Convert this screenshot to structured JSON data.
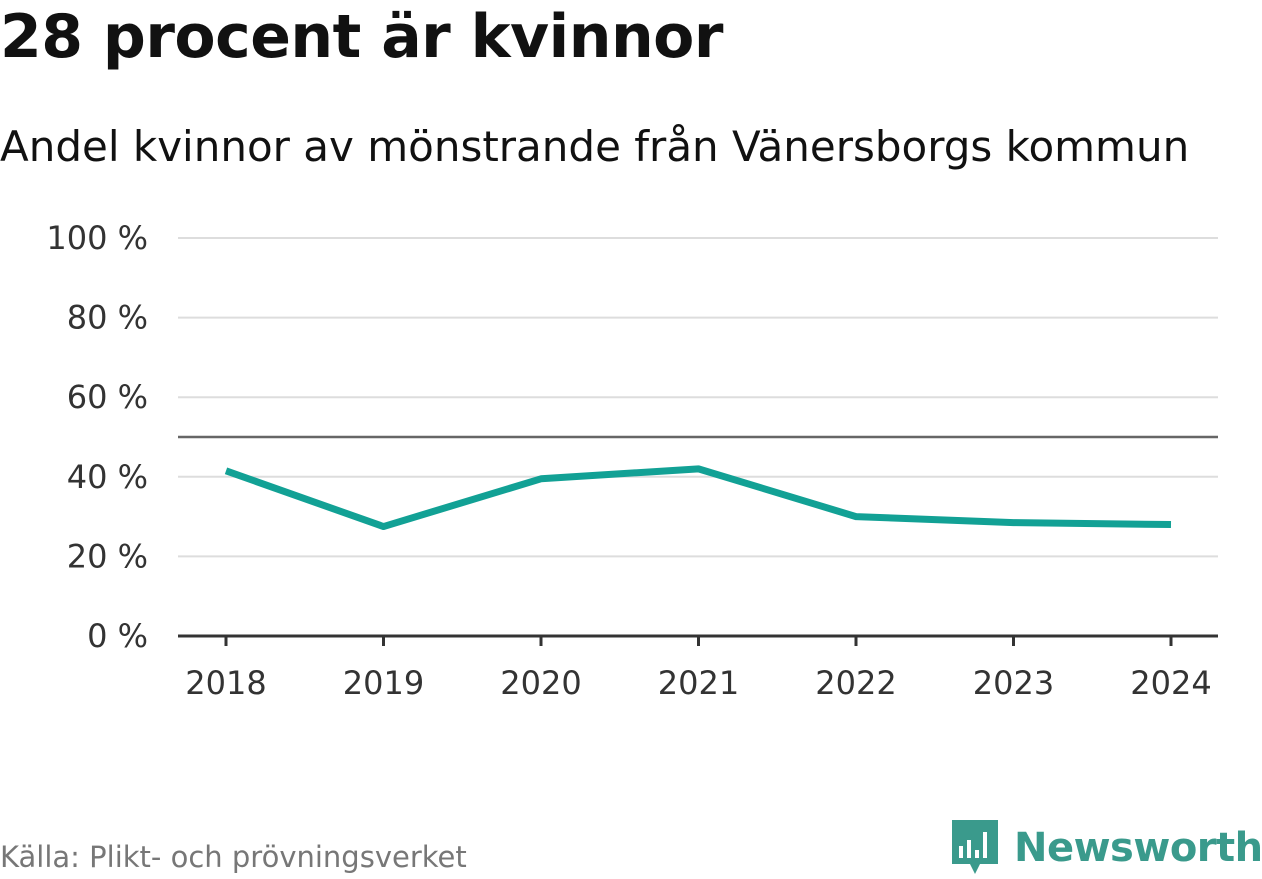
{
  "title": "28 procent är kvinnor",
  "subtitle": "Andel kvinnor av mönstrande från Vänersborgs kommun",
  "source": "Källa: Plikt- och prövningsverket",
  "brand": {
    "name": "Newsworthy",
    "color": "#3a9a8c",
    "icon": "bar-chart-speech-icon"
  },
  "colors": {
    "line": "#12a195",
    "reference": "#666666",
    "grid": "#dddddd",
    "axis": "#333333"
  },
  "chart_data": {
    "type": "line",
    "title": "28 procent är kvinnor",
    "subtitle": "Andel kvinnor av mönstrande från Vänersborgs kommun",
    "xlabel": "",
    "ylabel": "",
    "categories": [
      "2018",
      "2019",
      "2020",
      "2021",
      "2022",
      "2023",
      "2024"
    ],
    "series": [
      {
        "name": "Andel kvinnor",
        "values": [
          41.5,
          27.5,
          39.5,
          42,
          30,
          28.5,
          28
        ]
      }
    ],
    "reference_line": 50,
    "ylim": [
      0,
      100
    ],
    "yticks": [
      0,
      20,
      40,
      60,
      80,
      100
    ],
    "ytick_labels": [
      "0 %",
      "20 %",
      "40 %",
      "60 %",
      "80 %",
      "100 %"
    ],
    "grid": true,
    "legend": "none"
  }
}
